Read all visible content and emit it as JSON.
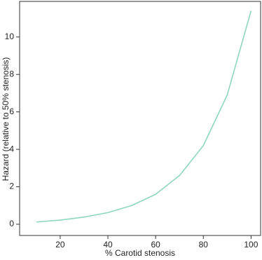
{
  "chart_data": {
    "type": "line",
    "x_label": "% Carotid stenosis",
    "y_label": "Hazard (relative to 50% stenosis)",
    "x": [
      10,
      20,
      30,
      40,
      50,
      60,
      70,
      80,
      90,
      100
    ],
    "series": [
      {
        "color": "#8fd6c0",
        "values": [
          0.12,
          0.22,
          0.38,
          0.62,
          1.0,
          1.6,
          2.6,
          4.2,
          6.9,
          11.4
        ]
      }
    ],
    "xlim": [
      3,
      104
    ],
    "xticks": [
      20,
      40,
      60,
      80,
      100
    ],
    "ylim": [
      -0.6,
      11.9
    ],
    "yticks": [
      0,
      2,
      4,
      6,
      8,
      10
    ],
    "grid": false
  }
}
